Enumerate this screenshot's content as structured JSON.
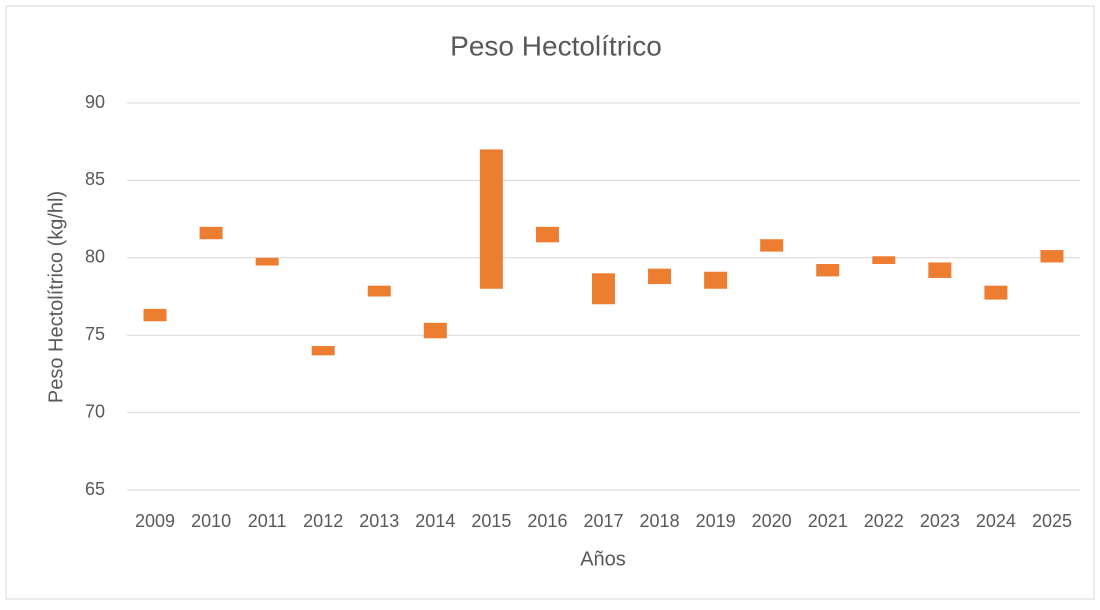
{
  "chart_data": {
    "type": "floating_bar",
    "title": "Peso Hectolítrico",
    "x_label": "Años",
    "y_label": "Peso Hectolítrico (kg/hl)",
    "categories": [
      "2009",
      "2010",
      "2011",
      "2012",
      "2013",
      "2014",
      "2015",
      "2016",
      "2017",
      "2018",
      "2019",
      "2020",
      "2021",
      "2022",
      "2023",
      "2024",
      "2025"
    ],
    "low": [
      75.9,
      81.2,
      79.5,
      73.7,
      77.5,
      74.8,
      78.0,
      81.0,
      77.0,
      78.3,
      78.0,
      80.4,
      78.8,
      79.6,
      78.7,
      77.3,
      79.7
    ],
    "high": [
      76.7,
      82.0,
      80.0,
      74.3,
      78.2,
      75.8,
      87.0,
      82.0,
      79.0,
      79.3,
      79.1,
      81.2,
      79.6,
      80.1,
      79.7,
      78.2,
      80.5
    ],
    "color": "#ed7d31",
    "ylim": [
      65,
      90
    ],
    "yticks": [
      65,
      70,
      75,
      80,
      85,
      90
    ],
    "grid": true
  }
}
